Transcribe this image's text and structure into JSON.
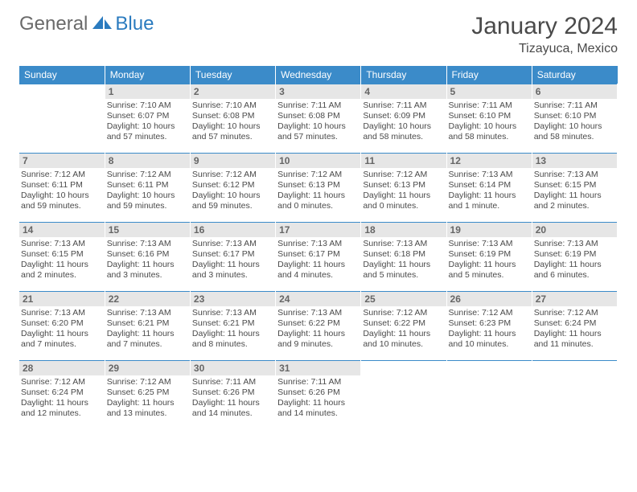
{
  "logo": {
    "text_gray": "General",
    "text_blue": "Blue"
  },
  "title": "January 2024",
  "location": "Tizayuca, Mexico",
  "colors": {
    "header_bg": "#3b8bc9",
    "header_text": "#ffffff",
    "row_border": "#3b8bc9",
    "daynum_bg": "#e6e6e6",
    "daynum_text": "#666666",
    "body_text": "#4a4a4a",
    "logo_gray": "#6a6a6a",
    "logo_blue": "#2b7bbf",
    "page_bg": "#ffffff"
  },
  "typography": {
    "title_fontsize": 30,
    "location_fontsize": 16,
    "header_fontsize": 12,
    "daynum_fontsize": 12,
    "cell_fontsize": 10.5,
    "font_family": "Arial"
  },
  "layout": {
    "columns": 7,
    "rows": 5,
    "first_day_column": 1
  },
  "weekdays": [
    "Sunday",
    "Monday",
    "Tuesday",
    "Wednesday",
    "Thursday",
    "Friday",
    "Saturday"
  ],
  "days": [
    {
      "n": "1",
      "sr": "7:10 AM",
      "ss": "6:07 PM",
      "dl": "10 hours and 57 minutes."
    },
    {
      "n": "2",
      "sr": "7:10 AM",
      "ss": "6:08 PM",
      "dl": "10 hours and 57 minutes."
    },
    {
      "n": "3",
      "sr": "7:11 AM",
      "ss": "6:08 PM",
      "dl": "10 hours and 57 minutes."
    },
    {
      "n": "4",
      "sr": "7:11 AM",
      "ss": "6:09 PM",
      "dl": "10 hours and 58 minutes."
    },
    {
      "n": "5",
      "sr": "7:11 AM",
      "ss": "6:10 PM",
      "dl": "10 hours and 58 minutes."
    },
    {
      "n": "6",
      "sr": "7:11 AM",
      "ss": "6:10 PM",
      "dl": "10 hours and 58 minutes."
    },
    {
      "n": "7",
      "sr": "7:12 AM",
      "ss": "6:11 PM",
      "dl": "10 hours and 59 minutes."
    },
    {
      "n": "8",
      "sr": "7:12 AM",
      "ss": "6:11 PM",
      "dl": "10 hours and 59 minutes."
    },
    {
      "n": "9",
      "sr": "7:12 AM",
      "ss": "6:12 PM",
      "dl": "10 hours and 59 minutes."
    },
    {
      "n": "10",
      "sr": "7:12 AM",
      "ss": "6:13 PM",
      "dl": "11 hours and 0 minutes."
    },
    {
      "n": "11",
      "sr": "7:12 AM",
      "ss": "6:13 PM",
      "dl": "11 hours and 0 minutes."
    },
    {
      "n": "12",
      "sr": "7:13 AM",
      "ss": "6:14 PM",
      "dl": "11 hours and 1 minute."
    },
    {
      "n": "13",
      "sr": "7:13 AM",
      "ss": "6:15 PM",
      "dl": "11 hours and 2 minutes."
    },
    {
      "n": "14",
      "sr": "7:13 AM",
      "ss": "6:15 PM",
      "dl": "11 hours and 2 minutes."
    },
    {
      "n": "15",
      "sr": "7:13 AM",
      "ss": "6:16 PM",
      "dl": "11 hours and 3 minutes."
    },
    {
      "n": "16",
      "sr": "7:13 AM",
      "ss": "6:17 PM",
      "dl": "11 hours and 3 minutes."
    },
    {
      "n": "17",
      "sr": "7:13 AM",
      "ss": "6:17 PM",
      "dl": "11 hours and 4 minutes."
    },
    {
      "n": "18",
      "sr": "7:13 AM",
      "ss": "6:18 PM",
      "dl": "11 hours and 5 minutes."
    },
    {
      "n": "19",
      "sr": "7:13 AM",
      "ss": "6:19 PM",
      "dl": "11 hours and 5 minutes."
    },
    {
      "n": "20",
      "sr": "7:13 AM",
      "ss": "6:19 PM",
      "dl": "11 hours and 6 minutes."
    },
    {
      "n": "21",
      "sr": "7:13 AM",
      "ss": "6:20 PM",
      "dl": "11 hours and 7 minutes."
    },
    {
      "n": "22",
      "sr": "7:13 AM",
      "ss": "6:21 PM",
      "dl": "11 hours and 7 minutes."
    },
    {
      "n": "23",
      "sr": "7:13 AM",
      "ss": "6:21 PM",
      "dl": "11 hours and 8 minutes."
    },
    {
      "n": "24",
      "sr": "7:13 AM",
      "ss": "6:22 PM",
      "dl": "11 hours and 9 minutes."
    },
    {
      "n": "25",
      "sr": "7:12 AM",
      "ss": "6:22 PM",
      "dl": "11 hours and 10 minutes."
    },
    {
      "n": "26",
      "sr": "7:12 AM",
      "ss": "6:23 PM",
      "dl": "11 hours and 10 minutes."
    },
    {
      "n": "27",
      "sr": "7:12 AM",
      "ss": "6:24 PM",
      "dl": "11 hours and 11 minutes."
    },
    {
      "n": "28",
      "sr": "7:12 AM",
      "ss": "6:24 PM",
      "dl": "11 hours and 12 minutes."
    },
    {
      "n": "29",
      "sr": "7:12 AM",
      "ss": "6:25 PM",
      "dl": "11 hours and 13 minutes."
    },
    {
      "n": "30",
      "sr": "7:11 AM",
      "ss": "6:26 PM",
      "dl": "11 hours and 14 minutes."
    },
    {
      "n": "31",
      "sr": "7:11 AM",
      "ss": "6:26 PM",
      "dl": "11 hours and 14 minutes."
    }
  ],
  "labels": {
    "sunrise": "Sunrise:",
    "sunset": "Sunset:",
    "daylight": "Daylight:"
  }
}
